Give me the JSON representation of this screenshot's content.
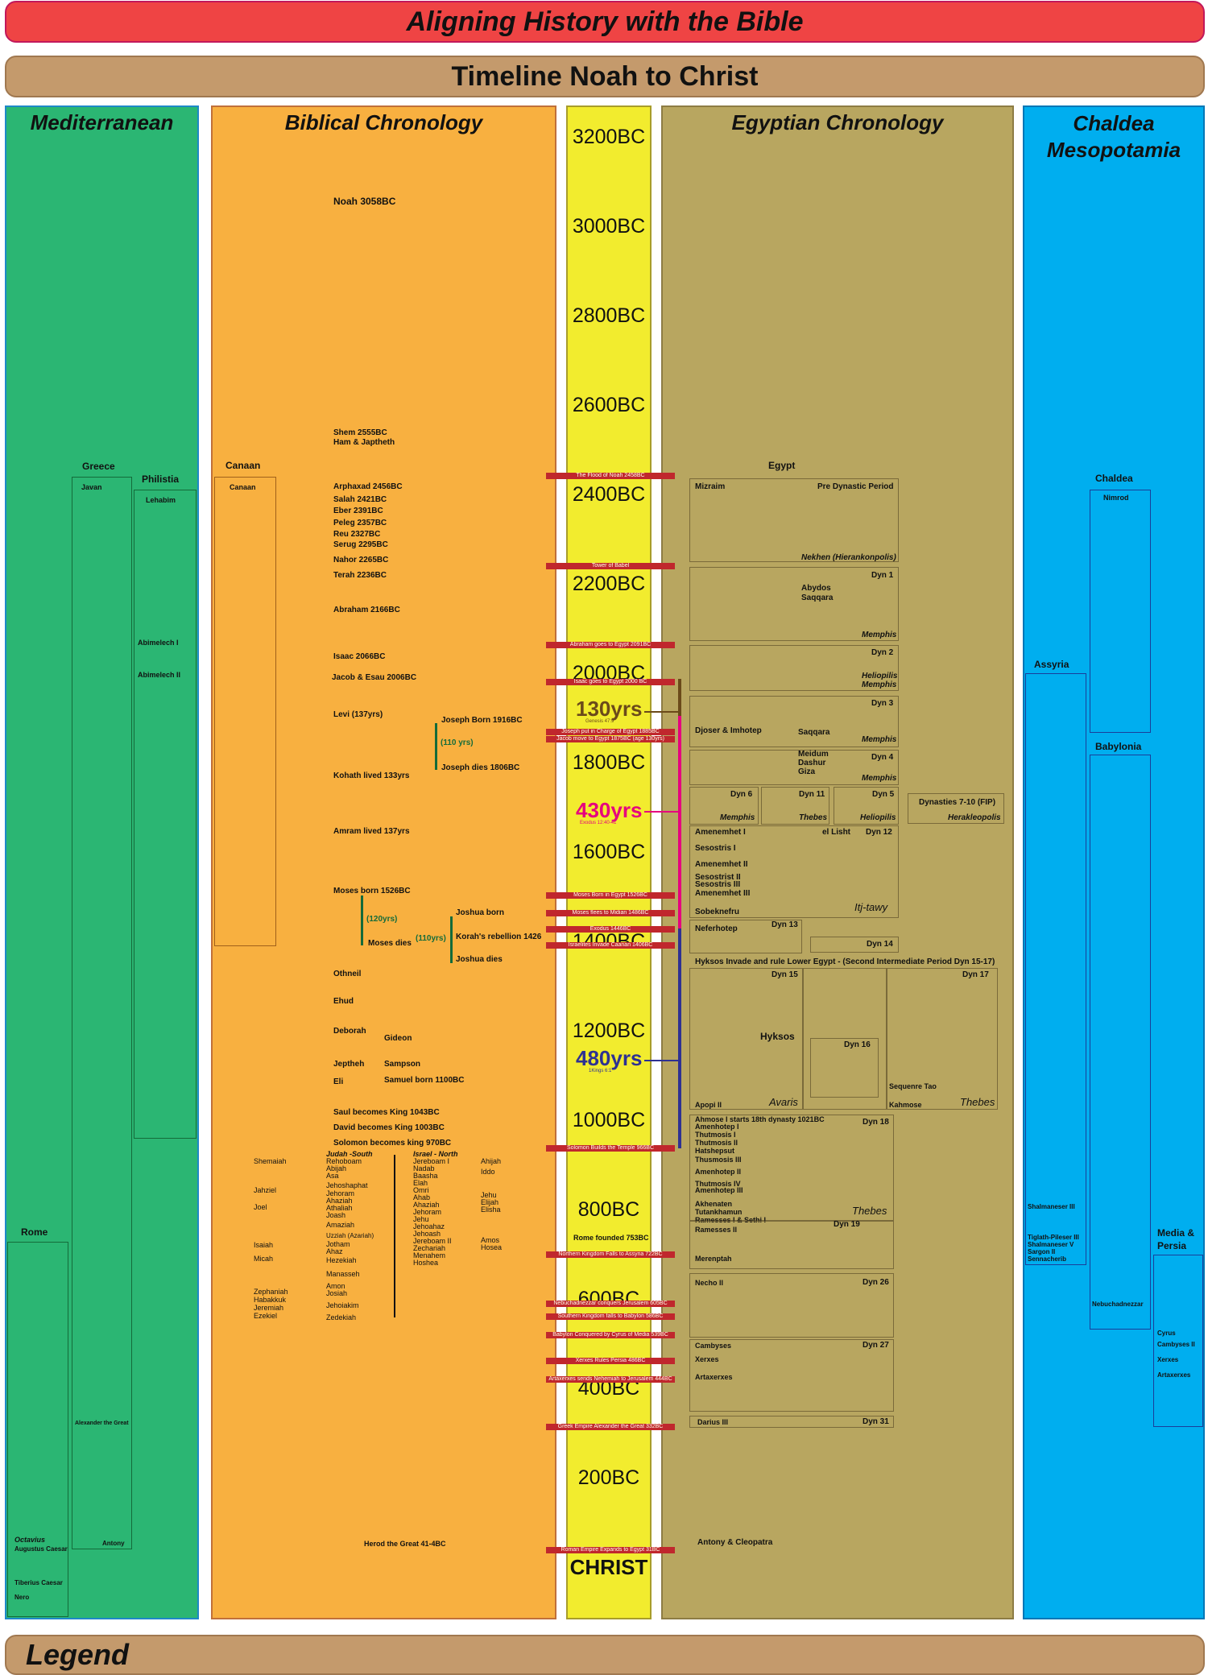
{
  "title": "Aligning History with the Bible",
  "subtitle": "Timeline Noah to Christ",
  "legend": "Legend",
  "colors": {
    "title_red": "#ef4444",
    "banner_tan": "#c49a6c",
    "med_green": "#2bb673",
    "bible_orange": "#f8b040",
    "years_yellow": "#f2ec2e",
    "egypt_olive": "#b8a660",
    "chaldea_blue": "#00aeef",
    "event_red": "#c0272d",
    "magenta": "#e6007e",
    "navy": "#2e3192",
    "brown": "#6b4a1a"
  },
  "columns": {
    "mediterranean": "Mediterranean",
    "biblical": "Biblical Chronology",
    "egyptian": "Egyptian Chronology",
    "chaldea_1": "Chaldea",
    "chaldea_2": "Mesopotamia"
  },
  "years": [
    "3200BC",
    "3000BC",
    "2800BC",
    "2600BC",
    "2400BC",
    "2200BC",
    "2000BC",
    "1800BC",
    "1600BC",
    "1400BC",
    "1200BC",
    "1000BC",
    "800BC",
    "600BC",
    "400BC",
    "200BC",
    "CHRIST"
  ],
  "spans": {
    "s130": "130yrs",
    "s130_ref": "Genesis 47:9",
    "s430": "430yrs",
    "s430_ref": "Exodus 12:40-41",
    "s480": "480yrs",
    "s480_ref": "1Kings 6:1"
  },
  "events": [
    "The Flood of Noah 2458BC",
    "Tower of Babel",
    "Abraham goes to Egypt 2091BC",
    "Isaac goes to Egypt 2000 BC",
    "Joseph put in Charge of Egypt 1885BC",
    "Jacob move to Egypt 1875BC (age 130yrs)",
    "Moses Born in Egypt 1526BC",
    "Moses flees to Midian 1486BC",
    "Exodus 1446BC",
    "Israelites Invade Caanan 1406BC",
    "Solomon Builds the Temple 966BC",
    "Northern Kingdom Falls to Assyria 722BC",
    "Nebuchadnezzar conquers Jerusalem 605BC",
    "Southern Kingdom falls to Babylon 586BC",
    "Babylon Conquered by Cyrus of Media 539BC",
    "Xerxes Rules Persia 486BC",
    "Artaxerxes sends Nehemiah to Jerusalem 444BC",
    "Greek Empire Alexander the Great 332BC",
    "Roman Empire Expands to Egypt 31BC"
  ],
  "mediterranean": {
    "greece": "Greece",
    "javan": "Javan",
    "philistia": "Philistia",
    "lehabim": "Lehabim",
    "abimelech1": "Abimelech I",
    "abimelech2": "Abimelech II",
    "alexander": "Alexander the Great",
    "antony": "Antony",
    "rome": "Rome",
    "octavius": "Octavius",
    "augustus": "Augustus Caesar",
    "tiberius": "Tiberius Caesar",
    "nero": "Nero"
  },
  "biblical": {
    "canaan_head": "Canaan",
    "canaan_box": "Canaan",
    "noah": "Noah 3058BC",
    "shem": "Shem 2555BC",
    "ham": "Ham & Japtheth",
    "arphaxad": "Arphaxad 2456BC",
    "salah": "Salah 2421BC",
    "eber": "Eber 2391BC",
    "peleg": "Peleg 2357BC",
    "reu": "Reu 2327BC",
    "serug": "Serug 2295BC",
    "nahor": "Nahor 2265BC",
    "terah": "Terah 2236BC",
    "abraham": "Abraham 2166BC",
    "isaac": "Isaac 2066BC",
    "jacob": "Jacob & Esau 2006BC",
    "levi": "Levi (137yrs)",
    "joseph_born": "Joseph Born 1916BC",
    "y110a": "(110 yrs)",
    "joseph_dies": "Joseph dies 1806BC",
    "kohath": "Kohath lived 133yrs",
    "amram": "Amram lived 137yrs",
    "moses_born": "Moses born 1526BC",
    "y120": "(120yrs)",
    "moses_dies": "Moses dies",
    "joshua_born": "Joshua born",
    "y110b": "(110yrs)",
    "korah": "Korah's rebellion 1426",
    "joshua_dies": "Joshua dies",
    "othneil": "Othneil",
    "ehud": "Ehud",
    "deborah": "Deborah",
    "gideon": "Gideon",
    "jeptheh": "Jeptheh",
    "sampson": "Sampson",
    "eli": "Eli",
    "samuel": "Samuel born 1100BC",
    "saul": "Saul becomes King 1043BC",
    "david": "David becomes King 1003BC",
    "solomon": "Solomon becomes king 970BC",
    "judah_head": "Judah -South",
    "israel_head": "Israel - North",
    "prophets_left": [
      "Shemaiah",
      "Jahziel",
      "Joel",
      "Isaiah",
      "Micah",
      "Zephaniah",
      "Habakkuk",
      "Jeremiah",
      "Ezekiel"
    ],
    "judah_kings": [
      "Rehoboam",
      "Abijah",
      "Asa",
      "Jehoshaphat",
      "Jehoram",
      "Ahaziah",
      "Athaliah",
      "Joash",
      "Amaziah",
      "Uzziah (Azariah)",
      "Jotham",
      "Ahaz",
      "Hezekiah",
      "Manasseh",
      "Amon",
      "Josiah",
      "Jehoiakim",
      "Zedekiah"
    ],
    "israel_kings": [
      "Jereboam I",
      "Nadab",
      "Baasha",
      "Elah",
      "Omri",
      "Ahab",
      "Ahaziah",
      "Jehoram",
      "Jehu",
      "Jehoahaz",
      "Jehoash",
      "Jereboam II",
      "Zechariah",
      "Menahem",
      "Hoshea"
    ],
    "prophets_right": [
      "Ahijah",
      "Iddo",
      "Jehu",
      "Elijah",
      "Elisha",
      "Amos",
      "Hosea"
    ],
    "herod": "Herod the Great  41-4BC"
  },
  "egypt": {
    "egypt": "Egypt",
    "mizraim": "Mizraim",
    "predynastic": "Pre Dynastic Period",
    "nekhen": "Nekhen (Hierankonpolis)",
    "dyn1": "Dyn 1",
    "abydos": "Abydos",
    "saqqara": "Saqqara",
    "memphis": "Memphis",
    "dyn2": "Dyn 2",
    "heliopilis": "Heliopilis",
    "dyn3": "Dyn 3",
    "djoser": "Djoser & Imhotep",
    "dyn4": "Dyn 4",
    "meidum": "Meidum",
    "dashur": "Dashur",
    "giza": "Giza",
    "dyn6": "Dyn 6",
    "dyn11": "Dyn 11",
    "thebes": "Thebes",
    "dyn5": "Dyn 5",
    "dyn7_10": "Dynasties 7-10 (FIP)",
    "herakleopolis": "Herakleopolis",
    "amenemhet1": "Amenemhet I",
    "el_lisht": "el Lisht",
    "dyn12": "Dyn 12",
    "dyn12_kings": [
      "Sesostris I",
      "Amenemhet II",
      "Sesostrist II",
      "Sesostris III",
      "Amenemhet III"
    ],
    "sobeknefru": "Sobeknefru",
    "itj_tawy": "Itj-tawy",
    "neferhotep": "Neferhotep",
    "dyn13": "Dyn 13",
    "dyn14": "Dyn 14",
    "hyksos_line": "Hyksos Invade and rule Lower Egypt - (Second Intermediate Period  Dyn 15-17)",
    "dyn15": "Dyn 15",
    "dyn16": "Dyn 16",
    "dyn17": "Dyn 17",
    "hyksos": "Hyksos",
    "apopi": "Apopi II",
    "avaris": "Avaris",
    "sequenre": "Sequenre Tao",
    "kahmose": "Kahmose",
    "ahmose": "Ahmose I starts 18th dynasty 1021BC",
    "dyn18": "Dyn 18",
    "dyn18_kings": [
      "Amenhotep I",
      "Thutmosis I",
      "Thutmosis II",
      "Hatshepsut",
      "Thusmosis III",
      "Amenhotep II",
      "Thutmosis IV",
      "Amenhotep III",
      "Akhenaten",
      "Tutankhamun",
      "Ramesses I & Sethi I",
      "Ramesses II"
    ],
    "dyn19": "Dyn 19",
    "merenptah": "Merenptah",
    "rome_founded": "Rome founded 753BC",
    "necho": "Necho II",
    "dyn26": "Dyn 26",
    "cambyses": "Cambyses",
    "xerxes": "Xerxes",
    "artaxerxes": "Artaxerxes",
    "dyn27": "Dyn 27",
    "darius": "Darius III",
    "dyn31": "Dyn 31",
    "antony_cleopatra": "Antony & Cleopatra"
  },
  "chaldea": {
    "chaldea": "Chaldea",
    "nimrod": "Nimrod",
    "assyria": "Assyria",
    "babylonia": "Babylonia",
    "shalmaneser3": "Shalmaneser III",
    "assyria_kings": [
      "Tiglath-Pileser III",
      "Shalmaneser V",
      "Sargon II",
      "Sennacherib"
    ],
    "nebuchadnezzar": "Nebuchadnezzar",
    "media_1": "Media &",
    "media_2": "Persia",
    "persia_kings": [
      "Cyrus",
      "Cambyses II",
      "Xerxes",
      "Artaxerxes"
    ]
  }
}
